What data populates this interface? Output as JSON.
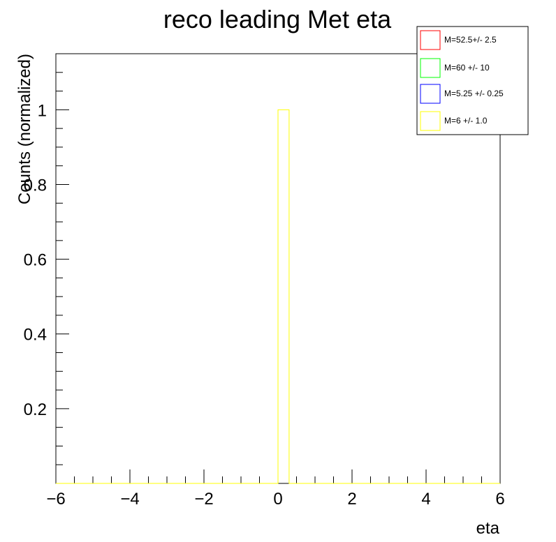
{
  "chart_data": {
    "type": "bar",
    "title": "reco leading Met eta",
    "xlabel": "eta",
    "ylabel": "Counts (normalized)",
    "xlim": [
      -6,
      6
    ],
    "ylim": [
      0,
      1.15
    ],
    "x_ticks": [
      -6,
      -4,
      -2,
      0,
      2,
      4,
      6
    ],
    "x_tick_labels": [
      "−6",
      "−4",
      "−2",
      "0",
      "2",
      "4",
      "6"
    ],
    "y_ticks": [
      0.2,
      0.4,
      0.6,
      0.8,
      1
    ],
    "y_tick_labels": [
      "0.2",
      "0.4",
      "0.6",
      "0.8",
      "1"
    ],
    "grid": false,
    "legend_position": "top-right",
    "series": [
      {
        "name": "M=52.5+/- 2.5",
        "color": "#ff0000",
        "bins": []
      },
      {
        "name": "M=60 +/- 10",
        "color": "#00ff00",
        "bins": []
      },
      {
        "name": "M=5.25 +/- 0.25",
        "color": "#0000ff",
        "bins": []
      },
      {
        "name": "M=6 +/- 1.0",
        "color": "#ffff00",
        "bins": [
          {
            "x0": 0,
            "x1": 0.3,
            "value": 1
          }
        ]
      }
    ]
  }
}
